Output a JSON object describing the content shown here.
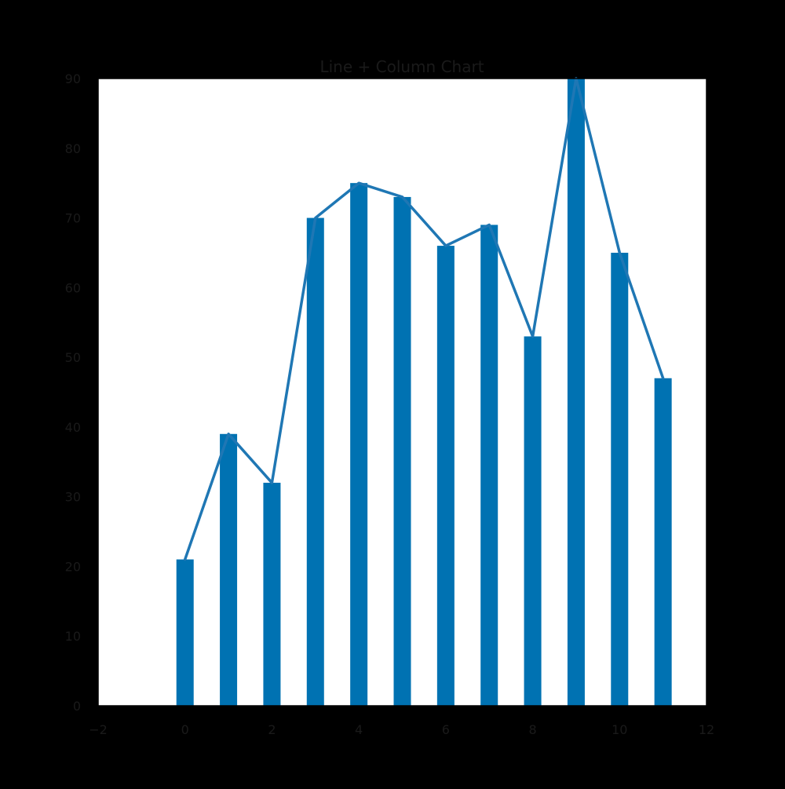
{
  "chart_data": {
    "type": "bar",
    "title": "Line + Column Chart",
    "xlabel": "",
    "ylabel": "",
    "x": [
      0,
      1,
      2,
      3,
      4,
      5,
      6,
      7,
      8,
      9,
      10,
      11
    ],
    "series": [
      {
        "type": "bar",
        "values": [
          21,
          39,
          32,
          70,
          75,
          73,
          66,
          69,
          53,
          90,
          65,
          47
        ]
      },
      {
        "type": "line",
        "values": [
          21,
          39,
          32,
          70,
          75,
          73,
          66,
          69,
          53,
          90,
          65,
          47
        ]
      }
    ],
    "xlim": [
      -2,
      12
    ],
    "ylim": [
      0,
      90
    ],
    "xticks": [
      "−2",
      "0",
      "2",
      "4",
      "6",
      "8",
      "10",
      "12"
    ],
    "xtick_values": [
      -2,
      0,
      2,
      4,
      6,
      8,
      10,
      12
    ],
    "yticks": [
      "0",
      "10",
      "20",
      "30",
      "40",
      "50",
      "60",
      "70",
      "80",
      "90"
    ],
    "ytick_values": [
      0,
      10,
      20,
      30,
      40,
      50,
      60,
      70,
      80,
      90
    ],
    "grid": false,
    "legend": "none",
    "colors": {
      "bar": "#0072b2",
      "line": "#1f77b4",
      "background": "#000000",
      "plot_area": "#ffffff",
      "text": "#1a1a1a"
    }
  }
}
